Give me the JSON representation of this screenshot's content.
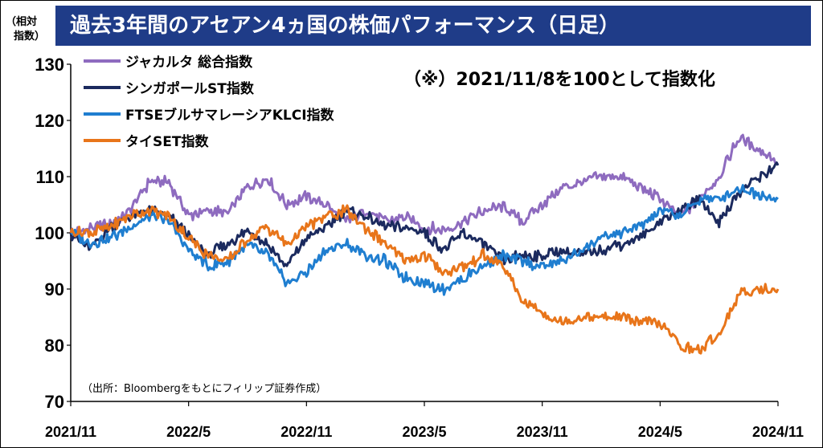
{
  "title": "過去3年間のアセアン4ヵ国の株価パフォーマンス（日足）",
  "y_unit": "（相対指数）",
  "annotation": "（※）2021/11/8を100として指数化",
  "source": "（出所：Bloombergをもとにフィリップ証券作成）",
  "chart_data": {
    "type": "line",
    "title": "過去3年間のアセアン4ヵ国の株価パフォーマンス（日足）",
    "xlabel": "",
    "ylabel": "（相対指数）",
    "ylim": [
      70,
      130
    ],
    "yticks": [
      70,
      80,
      90,
      100,
      110,
      120,
      130
    ],
    "xlim": [
      "2021-11",
      "2024-11"
    ],
    "xticks": [
      "2021/11",
      "2022/5",
      "2022/11",
      "2023/5",
      "2023/11",
      "2024/5",
      "2024/11"
    ],
    "grid": false,
    "legend": "top-left",
    "series": [
      {
        "name": "ジャカルタ 総合指数",
        "color": "#8e6bbf",
        "x": [
          "2021-11",
          "2021-12",
          "2022-01",
          "2022-02",
          "2022-03",
          "2022-04",
          "2022-05",
          "2022-06",
          "2022-07",
          "2022-08",
          "2022-09",
          "2022-10",
          "2022-11",
          "2022-12",
          "2023-01",
          "2023-02",
          "2023-03",
          "2023-04",
          "2023-05",
          "2023-06",
          "2023-07",
          "2023-08",
          "2023-09",
          "2023-10",
          "2023-11",
          "2023-12",
          "2024-01",
          "2024-02",
          "2024-03",
          "2024-04",
          "2024-05",
          "2024-06",
          "2024-07",
          "2024-08",
          "2024-09",
          "2024-10",
          "2024-11"
        ],
        "values": [
          100,
          101,
          101.5,
          104,
          109,
          109,
          103,
          104,
          103.5,
          108,
          109.5,
          105,
          106.5,
          105,
          102,
          104,
          102,
          103,
          101,
          100.5,
          102,
          104,
          104.5,
          102,
          105,
          108,
          109,
          110,
          110,
          108,
          106,
          103,
          106,
          110,
          117,
          115,
          112.5
        ]
      },
      {
        "name": "シンガポールST指数",
        "color": "#1b2a5e",
        "x": [
          "2021-11",
          "2021-12",
          "2022-01",
          "2022-02",
          "2022-03",
          "2022-04",
          "2022-05",
          "2022-06",
          "2022-07",
          "2022-08",
          "2022-09",
          "2022-10",
          "2022-11",
          "2022-12",
          "2023-01",
          "2023-02",
          "2023-03",
          "2023-04",
          "2023-05",
          "2023-06",
          "2023-07",
          "2023-08",
          "2023-09",
          "2023-10",
          "2023-11",
          "2023-12",
          "2024-01",
          "2024-02",
          "2024-03",
          "2024-04",
          "2024-05",
          "2024-06",
          "2024-07",
          "2024-08",
          "2024-09",
          "2024-10",
          "2024-11"
        ],
        "values": [
          100,
          97,
          101,
          103,
          104,
          103,
          99.5,
          96,
          98,
          100.5,
          98,
          94,
          99,
          101,
          104,
          103,
          101,
          101,
          100,
          97,
          100,
          98,
          95,
          96,
          96,
          97,
          96,
          97,
          98,
          99,
          102,
          104,
          106,
          102,
          107,
          110,
          112
        ]
      },
      {
        "name": "FTSEブルサマレーシアKLCI指数",
        "color": "#1f7ed0",
        "x": [
          "2021-11",
          "2021-12",
          "2022-01",
          "2022-02",
          "2022-03",
          "2022-04",
          "2022-05",
          "2022-06",
          "2022-07",
          "2022-08",
          "2022-09",
          "2022-10",
          "2022-11",
          "2022-12",
          "2023-01",
          "2023-02",
          "2023-03",
          "2023-04",
          "2023-05",
          "2023-06",
          "2023-07",
          "2023-08",
          "2023-09",
          "2023-10",
          "2023-11",
          "2023-12",
          "2024-01",
          "2024-02",
          "2024-03",
          "2024-04",
          "2024-05",
          "2024-06",
          "2024-07",
          "2024-08",
          "2024-09",
          "2024-10",
          "2024-11"
        ],
        "values": [
          100,
          98,
          99,
          101,
          103,
          102,
          97,
          94,
          95,
          98,
          96,
          91,
          93,
          97,
          98,
          96,
          95,
          92,
          91,
          90,
          92,
          94,
          96,
          95,
          94,
          95,
          97,
          99,
          100,
          101,
          104,
          103,
          106,
          106,
          108,
          107,
          106
        ]
      },
      {
        "name": "タイSET指数",
        "color": "#e8751a",
        "x": [
          "2021-11",
          "2021-12",
          "2022-01",
          "2022-02",
          "2022-03",
          "2022-04",
          "2022-05",
          "2022-06",
          "2022-07",
          "2022-08",
          "2022-09",
          "2022-10",
          "2022-11",
          "2022-12",
          "2023-01",
          "2023-02",
          "2023-03",
          "2023-04",
          "2023-05",
          "2023-06",
          "2023-07",
          "2023-08",
          "2023-09",
          "2023-10",
          "2023-11",
          "2023-12",
          "2024-01",
          "2024-02",
          "2024-03",
          "2024-04",
          "2024-05",
          "2024-06",
          "2024-07",
          "2024-08",
          "2024-09",
          "2024-10",
          "2024-11"
        ],
        "values": [
          100,
          100,
          101,
          103,
          104,
          103,
          99,
          96,
          95,
          99,
          101,
          98,
          101,
          103,
          104,
          101,
          98,
          95,
          96,
          93,
          94,
          96,
          94,
          88,
          86,
          84,
          85,
          85,
          85,
          84,
          84,
          80,
          79,
          82,
          89,
          90,
          90
        ]
      }
    ]
  }
}
